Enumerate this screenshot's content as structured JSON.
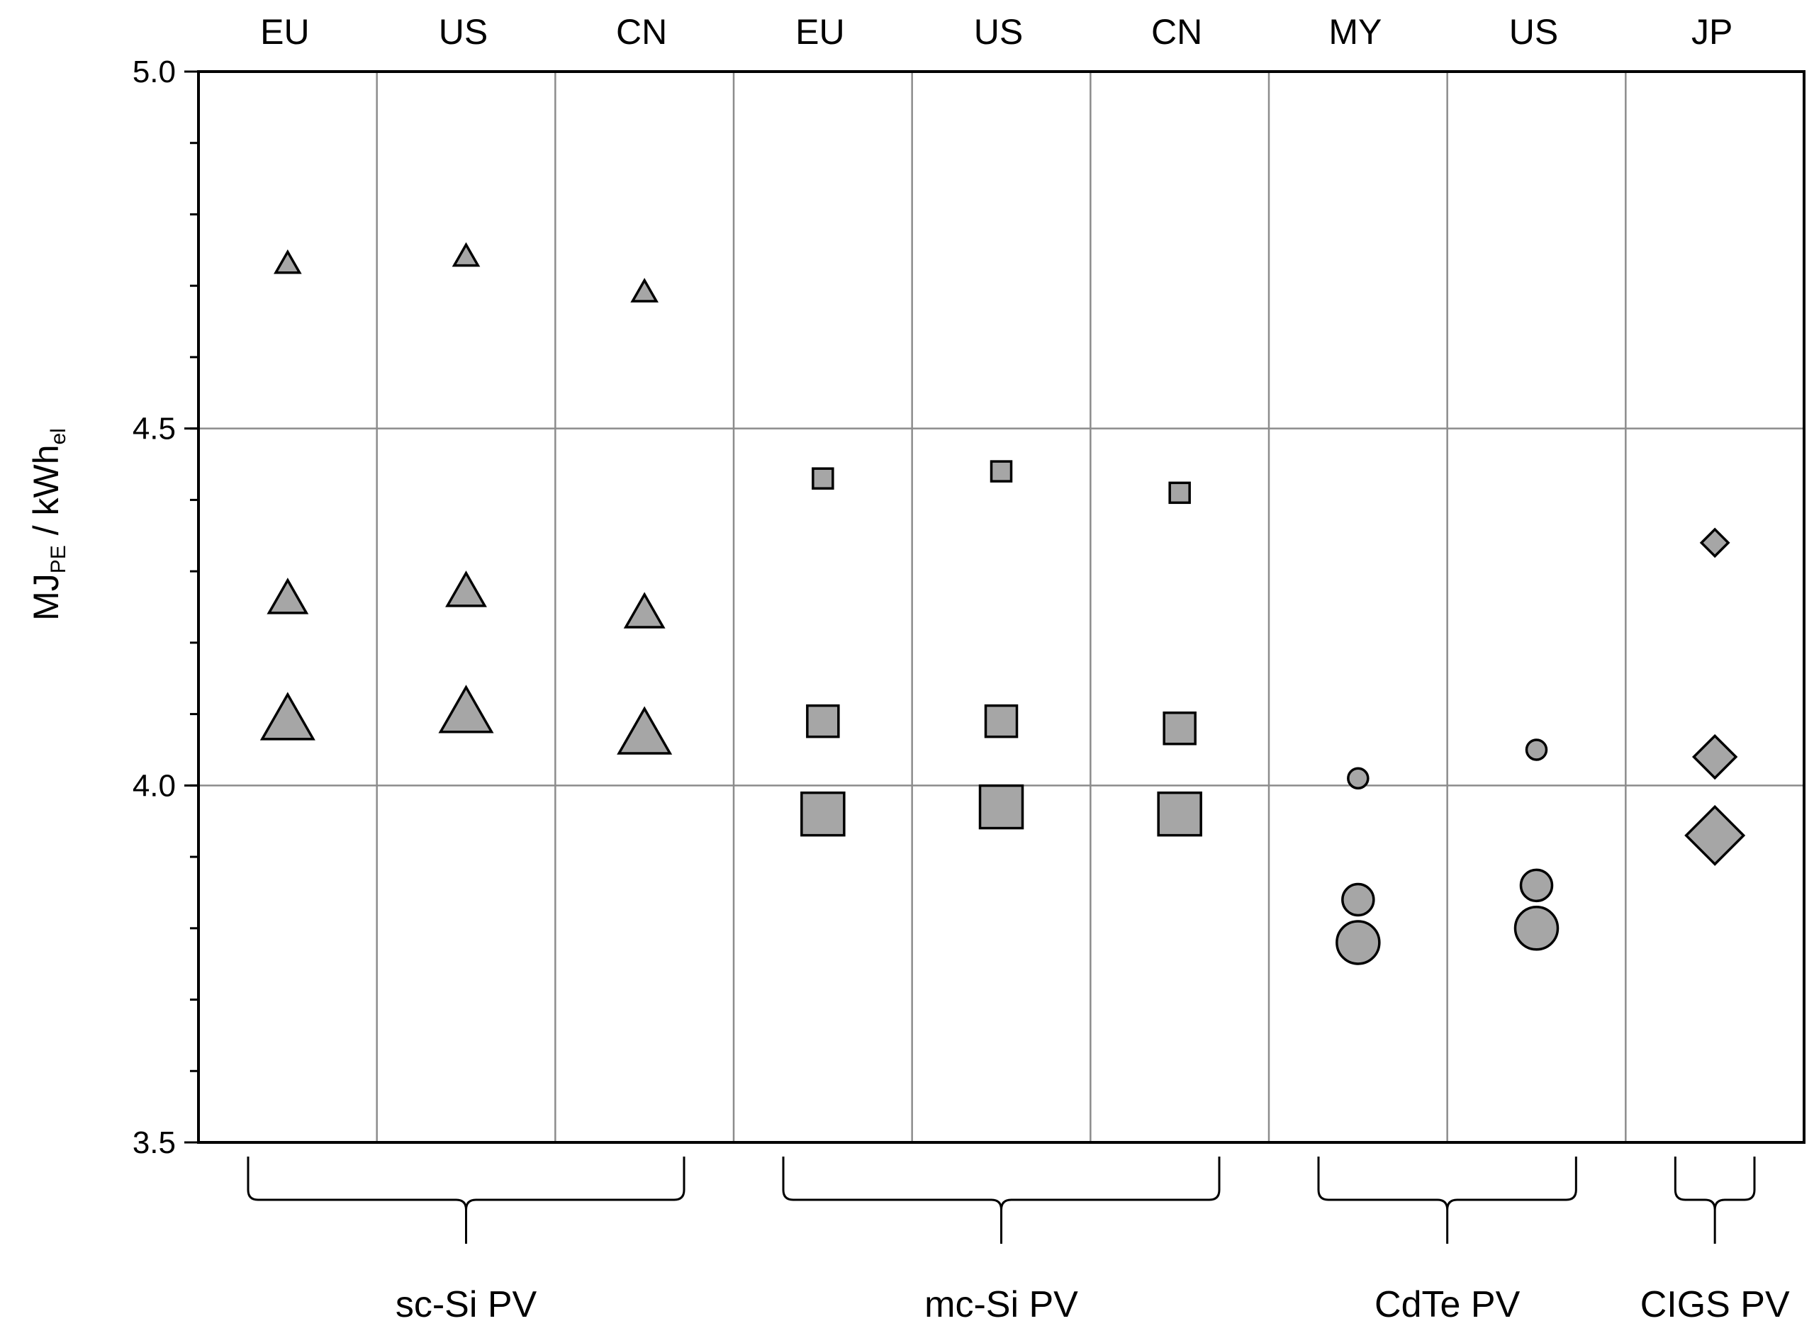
{
  "chart_data": {
    "type": "scatter",
    "ylabel_main": "MJ",
    "ylabel_sub1": "PE",
    "ylabel_mid": " / kWh",
    "ylabel_sub2": "el",
    "ylim": [
      3.5,
      5.0
    ],
    "y_ticks": [
      {
        "value": 3.5,
        "label": "3.5"
      },
      {
        "value": 4.0,
        "label": "4.0"
      },
      {
        "value": 4.5,
        "label": "4.5"
      },
      {
        "value": 5.0,
        "label": "5.0"
      }
    ],
    "grid": true,
    "columns": [
      "EU",
      "US",
      "CN",
      "EU",
      "US",
      "CN",
      "MY",
      "US",
      "JP"
    ],
    "groups": [
      {
        "label": "sc-Si PV",
        "start": 0,
        "end": 2
      },
      {
        "label": "mc-Si PV",
        "start": 3,
        "end": 5
      },
      {
        "label": "CdTe PV",
        "start": 6,
        "end": 7
      },
      {
        "label": "CIGS PV",
        "start": 8,
        "end": 8
      }
    ],
    "points": [
      {
        "col": 0,
        "y": 4.73,
        "shape": "triangle",
        "size": "small"
      },
      {
        "col": 0,
        "y": 4.26,
        "shape": "triangle",
        "size": "medium"
      },
      {
        "col": 0,
        "y": 4.09,
        "shape": "triangle",
        "size": "large"
      },
      {
        "col": 1,
        "y": 4.74,
        "shape": "triangle",
        "size": "small"
      },
      {
        "col": 1,
        "y": 4.27,
        "shape": "triangle",
        "size": "medium"
      },
      {
        "col": 1,
        "y": 4.1,
        "shape": "triangle",
        "size": "large"
      },
      {
        "col": 2,
        "y": 4.69,
        "shape": "triangle",
        "size": "small"
      },
      {
        "col": 2,
        "y": 4.24,
        "shape": "triangle",
        "size": "medium"
      },
      {
        "col": 2,
        "y": 4.07,
        "shape": "triangle",
        "size": "large"
      },
      {
        "col": 3,
        "y": 4.43,
        "shape": "square",
        "size": "small"
      },
      {
        "col": 3,
        "y": 4.09,
        "shape": "square",
        "size": "medium"
      },
      {
        "col": 3,
        "y": 3.96,
        "shape": "square",
        "size": "large"
      },
      {
        "col": 4,
        "y": 4.44,
        "shape": "square",
        "size": "small"
      },
      {
        "col": 4,
        "y": 4.09,
        "shape": "square",
        "size": "medium"
      },
      {
        "col": 4,
        "y": 3.97,
        "shape": "square",
        "size": "large"
      },
      {
        "col": 5,
        "y": 4.41,
        "shape": "square",
        "size": "small"
      },
      {
        "col": 5,
        "y": 4.08,
        "shape": "square",
        "size": "medium"
      },
      {
        "col": 5,
        "y": 3.96,
        "shape": "square",
        "size": "large"
      },
      {
        "col": 6,
        "y": 4.01,
        "shape": "circle",
        "size": "small"
      },
      {
        "col": 6,
        "y": 3.84,
        "shape": "circle",
        "size": "medium"
      },
      {
        "col": 6,
        "y": 3.78,
        "shape": "circle",
        "size": "large"
      },
      {
        "col": 7,
        "y": 4.05,
        "shape": "circle",
        "size": "small"
      },
      {
        "col": 7,
        "y": 3.86,
        "shape": "circle",
        "size": "medium"
      },
      {
        "col": 7,
        "y": 3.8,
        "shape": "circle",
        "size": "large"
      },
      {
        "col": 8,
        "y": 4.34,
        "shape": "diamond",
        "size": "small"
      },
      {
        "col": 8,
        "y": 4.04,
        "shape": "diamond",
        "size": "medium"
      },
      {
        "col": 8,
        "y": 3.93,
        "shape": "diamond",
        "size": "large"
      }
    ],
    "colors": {
      "marker_fill": "#a6a6a6",
      "marker_stroke": "#000000",
      "grid": "#8c8c8c",
      "axis": "#000000"
    }
  }
}
